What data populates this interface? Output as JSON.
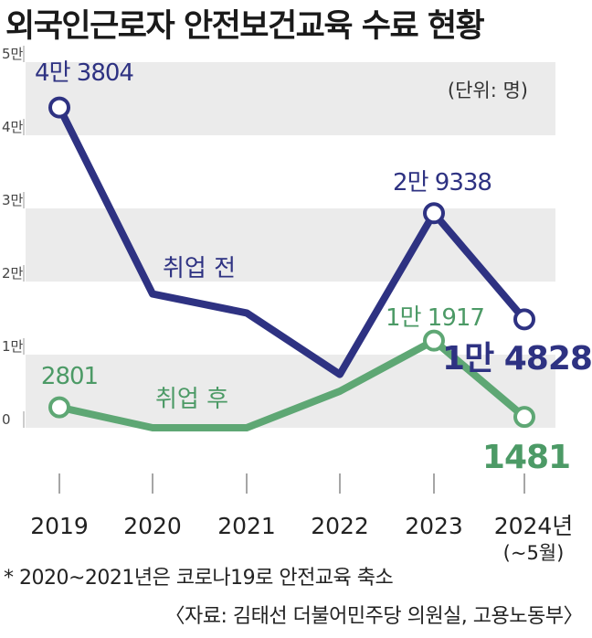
{
  "title": "외국인근로자 안전보건교육 수료 현황",
  "footnote": "* 2020~2021년은 코로나19로 안전교육 축소",
  "source": "〈자료: 김태선 더불어민주당 의원실, 고용노동부〉",
  "chart_data": {
    "type": "line",
    "unit_label": "(단위: 명)",
    "categories": [
      "2019",
      "2020",
      "2021",
      "2022",
      "2023",
      "2024년"
    ],
    "last_category_sub": "(~5월)",
    "y_ticks": [
      "0",
      "1만",
      "2만",
      "3만",
      "4만",
      "5만"
    ],
    "ylim": [
      0,
      50000
    ],
    "grid_bands": true,
    "series": [
      {
        "name": "취업 전",
        "color": "#2e3282",
        "values": [
          43804,
          18300,
          15700,
          7300,
          29338,
          14828
        ],
        "labels": [
          {
            "index": 0,
            "text": "4만 3804"
          },
          {
            "index": 4,
            "text": "2만 9338"
          },
          {
            "index": 5,
            "text": "1만 4828"
          }
        ]
      },
      {
        "name": "취업 후",
        "color": "#5ea774",
        "values": [
          2801,
          0,
          0,
          5000,
          11917,
          1481
        ],
        "labels": [
          {
            "index": 0,
            "text": "2801"
          },
          {
            "index": 4,
            "text": "1만 1917"
          },
          {
            "index": 5,
            "text": "1481"
          }
        ]
      }
    ]
  }
}
